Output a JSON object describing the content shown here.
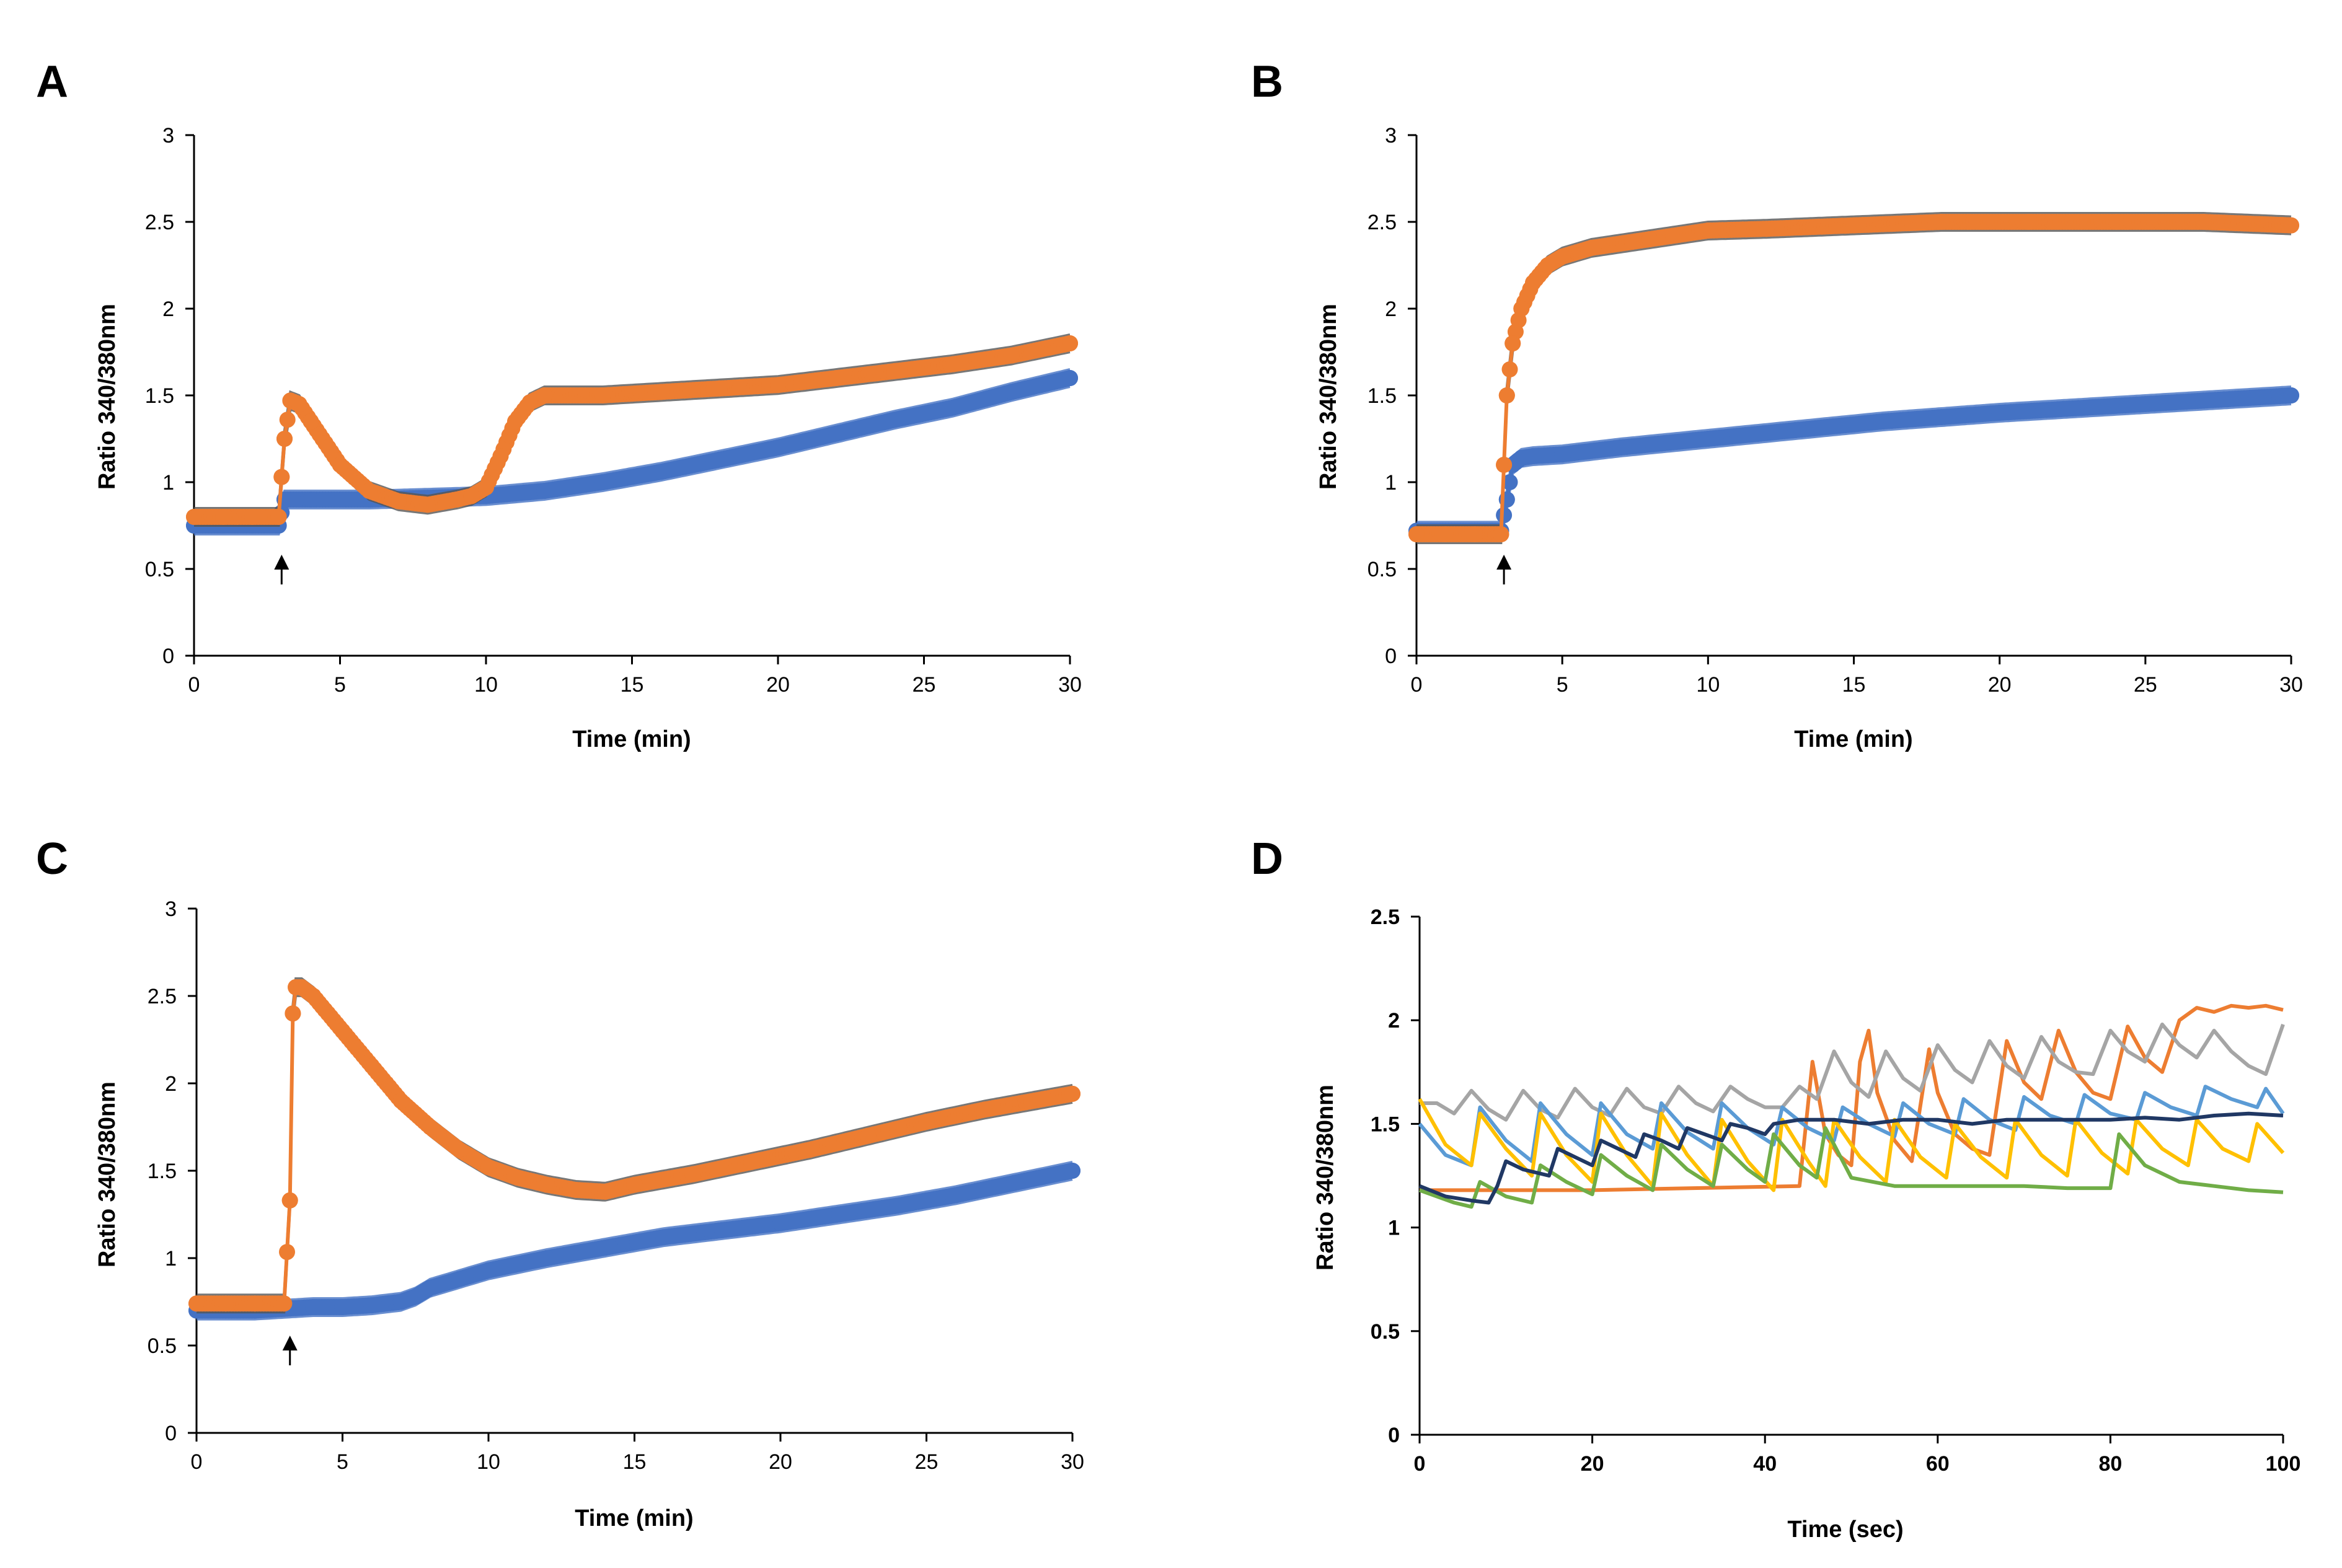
{
  "chart_data": [
    {
      "panel": "A",
      "type": "scatter",
      "xlabel": "Time (min)",
      "ylabel": "Ratio 340/380nm",
      "xlim": [
        0,
        30
      ],
      "ylim": [
        0,
        3
      ],
      "xticks": [
        "0",
        "5",
        "10",
        "15",
        "20",
        "25",
        "30"
      ],
      "yticks": [
        "0",
        "0.5",
        "1",
        "1.5",
        "2",
        "2.5",
        "3"
      ],
      "annotations": [
        {
          "type": "arrow",
          "x": 3,
          "y": 0.4
        }
      ],
      "series": [
        {
          "name": "blue",
          "color": "#4472C4",
          "error_color": "#4472C4",
          "x": [
            0,
            1,
            2,
            2.9,
            3.1,
            4,
            6,
            8,
            10,
            12,
            14,
            16,
            18,
            20,
            22,
            24,
            26,
            28,
            30
          ],
          "y": [
            0.75,
            0.75,
            0.75,
            0.75,
            0.9,
            0.9,
            0.9,
            0.91,
            0.92,
            0.95,
            1.0,
            1.06,
            1.13,
            1.2,
            1.28,
            1.36,
            1.43,
            1.52,
            1.6
          ]
        },
        {
          "name": "orange",
          "color": "#ED7D31",
          "error_color": "#555555",
          "x": [
            0,
            1,
            2,
            2.9,
            3.0,
            3.1,
            3.3,
            3.6,
            4,
            5,
            6,
            7,
            8,
            9,
            9.5,
            10,
            10.5,
            11,
            11.5,
            12,
            14,
            16,
            18,
            20,
            22,
            24,
            26,
            28,
            30
          ],
          "y": [
            0.8,
            0.8,
            0.8,
            0.8,
            1.03,
            1.25,
            1.47,
            1.45,
            1.35,
            1.1,
            0.95,
            0.89,
            0.87,
            0.9,
            0.92,
            0.97,
            1.15,
            1.35,
            1.46,
            1.5,
            1.5,
            1.52,
            1.54,
            1.56,
            1.6,
            1.64,
            1.68,
            1.73,
            1.8
          ]
        }
      ]
    },
    {
      "panel": "B",
      "type": "scatter",
      "xlabel": "Time (min)",
      "ylabel": "Ratio 340/380nm",
      "xlim": [
        0,
        30
      ],
      "ylim": [
        0,
        3
      ],
      "xticks": [
        "0",
        "5",
        "10",
        "15",
        "20",
        "25",
        "30"
      ],
      "yticks": [
        "0",
        "0.5",
        "1",
        "1.5",
        "2",
        "2.5",
        "3"
      ],
      "annotations": [
        {
          "type": "arrow",
          "x": 3,
          "y": 0.4
        }
      ],
      "series": [
        {
          "name": "blue",
          "color": "#4472C4",
          "error_color": "#4472C4",
          "x": [
            0,
            1,
            2,
            2.9,
            3.1,
            3.3,
            3.6,
            4,
            5,
            7,
            10,
            13,
            16,
            20,
            24,
            27,
            30
          ],
          "y": [
            0.72,
            0.72,
            0.72,
            0.72,
            0.9,
            1.1,
            1.14,
            1.15,
            1.16,
            1.2,
            1.25,
            1.3,
            1.35,
            1.4,
            1.44,
            1.47,
            1.5
          ]
        },
        {
          "name": "orange",
          "color": "#ED7D31",
          "error_color": "#555555",
          "x": [
            0,
            1,
            2,
            2.9,
            3.0,
            3.1,
            3.3,
            3.6,
            4,
            4.5,
            5,
            6,
            8,
            10,
            12,
            15,
            18,
            21,
            24,
            27,
            30
          ],
          "y": [
            0.7,
            0.7,
            0.7,
            0.7,
            1.1,
            1.5,
            1.8,
            2.0,
            2.15,
            2.25,
            2.3,
            2.35,
            2.4,
            2.45,
            2.46,
            2.48,
            2.5,
            2.5,
            2.5,
            2.5,
            2.48
          ]
        }
      ]
    },
    {
      "panel": "C",
      "type": "scatter",
      "xlabel": "Time (min)",
      "ylabel": "Ratio 340/380nm",
      "xlim": [
        0,
        30
      ],
      "ylim": [
        0,
        3
      ],
      "xticks": [
        "0",
        "5",
        "10",
        "15",
        "20",
        "25",
        "30"
      ],
      "yticks": [
        "0",
        "0.5",
        "1",
        "1.5",
        "2",
        "2.5",
        "3"
      ],
      "annotations": [
        {
          "type": "arrow",
          "x": 3.2,
          "y": 0.4
        }
      ],
      "series": [
        {
          "name": "blue",
          "color": "#4472C4",
          "error_color": "#4472C4",
          "x": [
            0,
            1,
            2,
            3,
            4,
            5,
            6,
            7,
            7.5,
            8,
            9,
            10,
            12,
            14,
            16,
            18,
            20,
            22,
            24,
            26,
            28,
            30
          ],
          "y": [
            0.7,
            0.7,
            0.7,
            0.71,
            0.72,
            0.72,
            0.73,
            0.75,
            0.78,
            0.83,
            0.88,
            0.93,
            1.0,
            1.06,
            1.12,
            1.16,
            1.2,
            1.25,
            1.3,
            1.36,
            1.43,
            1.5
          ]
        },
        {
          "name": "orange",
          "color": "#ED7D31",
          "error_color": "#555555",
          "x": [
            0,
            1,
            2,
            3,
            3.2,
            3.3,
            3.4,
            3.6,
            4,
            5,
            6,
            7,
            8,
            9,
            10,
            11,
            12,
            13,
            14,
            15,
            17,
            19,
            21,
            23,
            25,
            27,
            29,
            30
          ],
          "y": [
            0.74,
            0.74,
            0.74,
            0.74,
            1.33,
            2.4,
            2.55,
            2.55,
            2.5,
            2.3,
            2.1,
            1.9,
            1.75,
            1.62,
            1.52,
            1.46,
            1.42,
            1.39,
            1.38,
            1.42,
            1.48,
            1.55,
            1.62,
            1.7,
            1.78,
            1.85,
            1.91,
            1.94
          ]
        }
      ]
    },
    {
      "panel": "D",
      "type": "line",
      "xlabel": "Time (sec)",
      "ylabel": "Ratio 340/380nm",
      "xlim": [
        0,
        100
      ],
      "ylim": [
        0,
        2.5
      ],
      "xticks": [
        "0",
        "20",
        "40",
        "60",
        "80",
        "100"
      ],
      "yticks": [
        "0",
        "0.5",
        "1",
        "1.5",
        "2",
        "2.5"
      ],
      "series": [
        {
          "name": "orange",
          "color": "#ED7D31",
          "x": [
            0,
            20,
            44,
            45.5,
            47,
            48.5,
            50,
            51,
            52,
            53,
            55,
            57,
            59,
            60,
            62,
            64,
            66,
            68,
            70,
            72,
            74,
            76,
            78,
            80,
            82,
            84,
            86,
            88,
            90,
            92,
            94,
            96,
            98,
            100
          ],
          "y": [
            1.18,
            1.18,
            1.2,
            1.8,
            1.45,
            1.35,
            1.3,
            1.8,
            1.95,
            1.65,
            1.42,
            1.32,
            1.86,
            1.65,
            1.45,
            1.38,
            1.35,
            1.9,
            1.7,
            1.62,
            1.95,
            1.75,
            1.65,
            1.62,
            1.97,
            1.82,
            1.75,
            2.0,
            2.06,
            2.04,
            2.07,
            2.06,
            2.07,
            2.05
          ]
        },
        {
          "name": "gray",
          "color": "#A5A5A5",
          "x": [
            0,
            2,
            4,
            6,
            8,
            10,
            12,
            14,
            16,
            18,
            20,
            22,
            24,
            26,
            28,
            30,
            32,
            34,
            36,
            38,
            40,
            42,
            44,
            46,
            48,
            50,
            52,
            54,
            56,
            58,
            60,
            62,
            64,
            66,
            68,
            70,
            72,
            74,
            76,
            78,
            80,
            82,
            84,
            86,
            88,
            90,
            92,
            94,
            96,
            98,
            100
          ],
          "y": [
            1.6,
            1.6,
            1.55,
            1.66,
            1.57,
            1.52,
            1.66,
            1.57,
            1.53,
            1.67,
            1.58,
            1.54,
            1.67,
            1.58,
            1.55,
            1.68,
            1.6,
            1.56,
            1.68,
            1.62,
            1.58,
            1.58,
            1.68,
            1.62,
            1.85,
            1.7,
            1.63,
            1.85,
            1.72,
            1.66,
            1.88,
            1.76,
            1.7,
            1.9,
            1.78,
            1.72,
            1.92,
            1.8,
            1.75,
            1.74,
            1.95,
            1.85,
            1.8,
            1.98,
            1.88,
            1.82,
            1.95,
            1.85,
            1.78,
            1.74,
            1.98
          ]
        },
        {
          "name": "light-blue",
          "color": "#5B9BD5",
          "x": [
            0,
            3,
            6,
            7,
            10,
            13,
            14,
            17,
            20,
            21,
            24,
            27,
            28,
            31,
            34,
            35,
            38,
            41,
            42,
            45,
            48,
            49,
            52,
            55,
            56,
            59,
            62,
            63,
            66,
            69,
            70,
            73,
            76,
            77,
            80,
            83,
            84,
            87,
            90,
            91,
            94,
            97,
            98,
            100
          ],
          "y": [
            1.5,
            1.35,
            1.3,
            1.58,
            1.42,
            1.32,
            1.6,
            1.45,
            1.35,
            1.6,
            1.45,
            1.38,
            1.6,
            1.46,
            1.38,
            1.6,
            1.48,
            1.4,
            1.58,
            1.48,
            1.42,
            1.58,
            1.5,
            1.44,
            1.6,
            1.5,
            1.45,
            1.62,
            1.52,
            1.47,
            1.63,
            1.54,
            1.5,
            1.64,
            1.55,
            1.52,
            1.65,
            1.58,
            1.54,
            1.68,
            1.62,
            1.58,
            1.67,
            1.55
          ]
        },
        {
          "name": "yellow",
          "color": "#FFC000",
          "x": [
            0,
            3,
            6,
            7,
            10,
            13,
            14,
            17,
            20,
            21,
            24,
            27,
            28,
            31,
            34,
            35,
            38,
            41,
            42,
            45,
            47,
            48,
            51,
            54,
            55,
            58,
            61,
            62,
            65,
            68,
            69,
            72,
            75,
            76,
            79,
            82,
            83,
            86,
            89,
            90,
            93,
            96,
            97,
            100
          ],
          "y": [
            1.62,
            1.4,
            1.3,
            1.55,
            1.38,
            1.25,
            1.55,
            1.35,
            1.22,
            1.55,
            1.35,
            1.2,
            1.55,
            1.35,
            1.2,
            1.52,
            1.32,
            1.18,
            1.52,
            1.32,
            1.2,
            1.52,
            1.34,
            1.22,
            1.52,
            1.34,
            1.24,
            1.5,
            1.34,
            1.24,
            1.52,
            1.35,
            1.25,
            1.52,
            1.36,
            1.26,
            1.52,
            1.38,
            1.3,
            1.52,
            1.38,
            1.32,
            1.5,
            1.36
          ]
        },
        {
          "name": "green",
          "color": "#70AD47",
          "x": [
            0,
            4,
            6,
            7,
            10,
            13,
            14,
            17,
            20,
            21,
            24,
            27,
            28,
            31,
            34,
            35,
            38,
            40,
            41,
            44,
            46,
            47,
            50,
            55,
            60,
            65,
            70,
            75,
            80,
            81,
            84,
            88,
            92,
            96,
            100
          ],
          "y": [
            1.18,
            1.12,
            1.1,
            1.22,
            1.15,
            1.12,
            1.3,
            1.22,
            1.16,
            1.35,
            1.25,
            1.18,
            1.4,
            1.28,
            1.2,
            1.4,
            1.28,
            1.22,
            1.45,
            1.3,
            1.24,
            1.48,
            1.24,
            1.2,
            1.2,
            1.2,
            1.2,
            1.19,
            1.19,
            1.45,
            1.3,
            1.22,
            1.2,
            1.18,
            1.17
          ]
        },
        {
          "name": "dark-blue",
          "color": "#203864",
          "x": [
            0,
            3,
            6,
            8,
            9,
            10,
            12,
            15,
            16,
            18,
            20,
            21,
            23,
            25,
            26,
            28,
            30,
            31,
            33,
            35,
            36,
            38,
            40,
            41,
            44,
            48,
            52,
            56,
            60,
            64,
            68,
            72,
            76,
            80,
            84,
            88,
            92,
            96,
            100
          ],
          "y": [
            1.2,
            1.15,
            1.13,
            1.12,
            1.2,
            1.32,
            1.28,
            1.25,
            1.38,
            1.34,
            1.3,
            1.42,
            1.38,
            1.34,
            1.45,
            1.42,
            1.38,
            1.48,
            1.45,
            1.42,
            1.5,
            1.48,
            1.45,
            1.5,
            1.52,
            1.52,
            1.5,
            1.52,
            1.52,
            1.5,
            1.52,
            1.52,
            1.52,
            1.52,
            1.53,
            1.52,
            1.54,
            1.55,
            1.54
          ]
        }
      ]
    }
  ]
}
